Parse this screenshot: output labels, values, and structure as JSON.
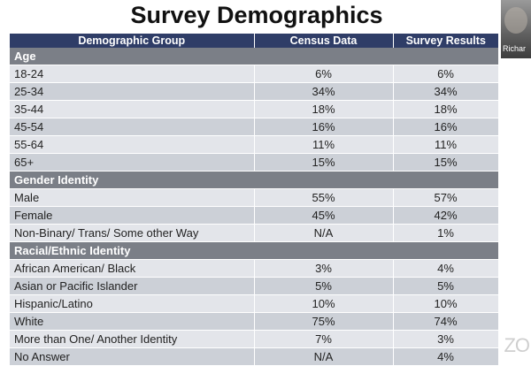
{
  "title": "Survey Demographics",
  "video_tile": {
    "participant_name": "Richar"
  },
  "table": {
    "headers": [
      "Demographic Group",
      "Census Data",
      "Survey Results"
    ],
    "sections": [
      {
        "label": "Age",
        "rows": [
          [
            "18-24",
            "6%",
            "6%"
          ],
          [
            "25-34",
            "34%",
            "34%"
          ],
          [
            "35-44",
            "18%",
            "18%"
          ],
          [
            "45-54",
            "16%",
            "16%"
          ],
          [
            "55-64",
            "11%",
            "11%"
          ],
          [
            "65+",
            "15%",
            "15%"
          ]
        ]
      },
      {
        "label": "Gender Identity",
        "rows": [
          [
            "Male",
            "55%",
            "57%"
          ],
          [
            "Female",
            "45%",
            "42%"
          ],
          [
            "Non-Binary/ Trans/ Some other Way",
            "N/A",
            "1%"
          ]
        ]
      },
      {
        "label": "Racial/Ethnic Identity",
        "rows": [
          [
            "African American/ Black",
            "3%",
            "4%"
          ],
          [
            "Asian or Pacific Islander",
            "5%",
            "5%"
          ],
          [
            "Hispanic/Latino",
            "10%",
            "10%"
          ],
          [
            "White",
            "75%",
            "74%"
          ],
          [
            "More than One/ Another Identity",
            "7%",
            "3%"
          ],
          [
            "No Answer",
            "N/A",
            "4%"
          ]
        ]
      }
    ]
  },
  "watermark": "ZO",
  "colors": {
    "header": "#2f3d67",
    "section": "#7b7f87",
    "row_light": "#e3e5ea",
    "row_dark": "#ccd0d7"
  }
}
